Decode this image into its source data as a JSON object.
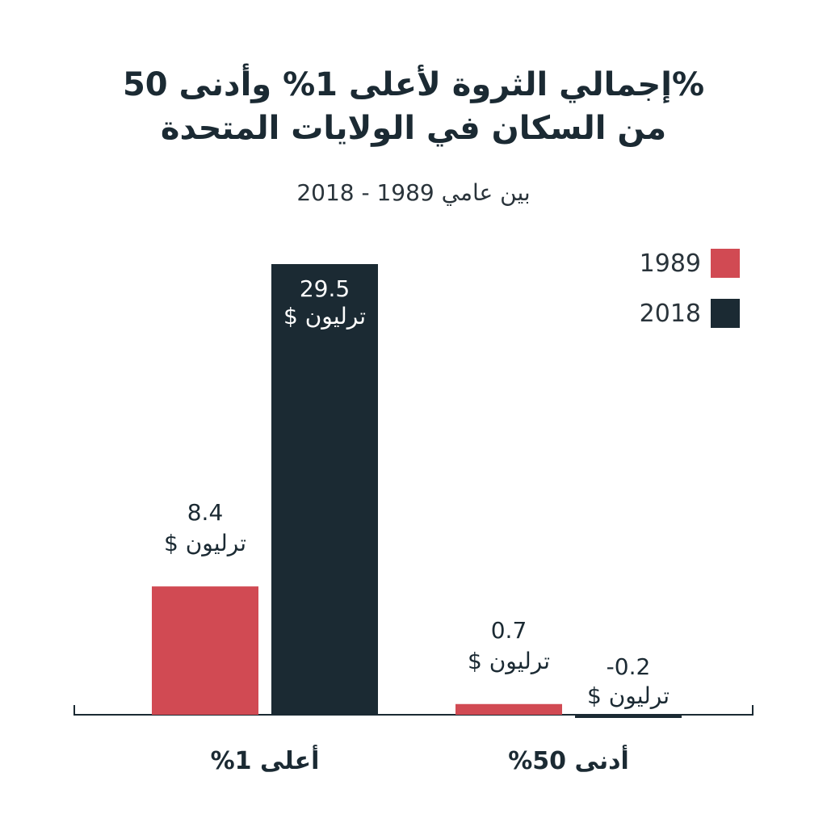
{
  "title_line1": "إجمالي الثروة لأعلى 1% وأدنى 50%",
  "title_line2": "من السكان في الولايات المتحدة",
  "subtitle": "بين عامي 1989 - 2018",
  "legend": [
    {
      "label": "1989",
      "color": "#d14a53"
    },
    {
      "label": "2018",
      "color": "#1b2a33"
    }
  ],
  "chart_data": {
    "type": "bar",
    "title": "إجمالي الثروة لأعلى 1% وأدنى 50% من السكان في الولايات المتحدة",
    "subtitle": "بين عامي 1989 - 2018",
    "categories": [
      "أعلى 1%",
      "أدنى 50%"
    ],
    "series": [
      {
        "name": "1989",
        "color": "#d14a53",
        "values": [
          8.4,
          0.7
        ],
        "labels": [
          "8.4",
          "0.7"
        ]
      },
      {
        "name": "2018",
        "color": "#1b2a33",
        "values": [
          29.5,
          -0.2
        ],
        "labels": [
          "29.5",
          "-0.2"
        ]
      }
    ],
    "value_unit": "ترليون $",
    "ylim": [
      -0.2,
      29.5
    ],
    "grid": false,
    "legend_position": "top-right"
  }
}
